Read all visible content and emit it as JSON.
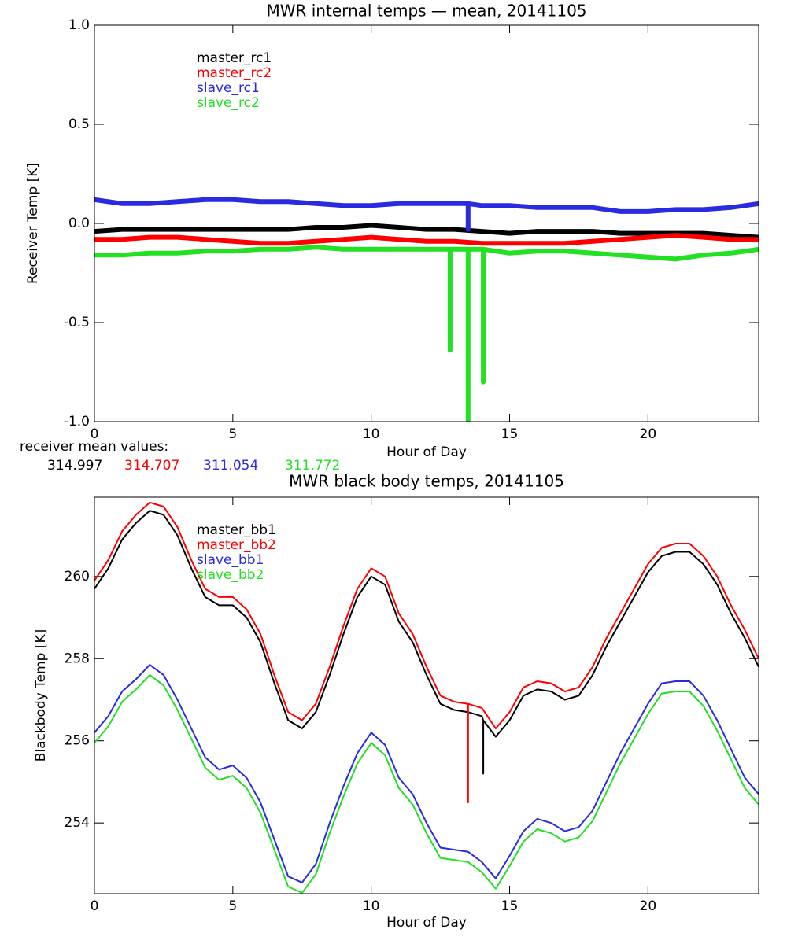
{
  "chart_data": [
    {
      "type": "line",
      "title": "MWR internal temps — mean, 20141105",
      "xlabel": "Hour of Day",
      "ylabel": "Receiver Temp [K]",
      "xlim": [
        0,
        24
      ],
      "ylim": [
        -1.0,
        1.0
      ],
      "xticks": [
        0,
        5,
        10,
        15,
        20
      ],
      "yticks": [
        {
          "value": -1,
          "label": "-1.0"
        },
        {
          "value": -0.5,
          "label": "-0.5"
        },
        {
          "value": 0,
          "label": "0.0"
        },
        {
          "value": 0.5,
          "label": "0.5"
        },
        {
          "value": 1,
          "label": "1.0"
        }
      ],
      "legend": "upper left",
      "series": [
        {
          "name": "master_rc1",
          "color": "#000000",
          "x": [
            0,
            1,
            2,
            3,
            4,
            5,
            6,
            7,
            8,
            9,
            10,
            11,
            12,
            13,
            14,
            15,
            16,
            17,
            18,
            19,
            20,
            21,
            22,
            23,
            24
          ],
          "values": [
            -0.04,
            -0.03,
            -0.03,
            -0.03,
            -0.03,
            -0.03,
            -0.03,
            -0.03,
            -0.02,
            -0.02,
            -0.01,
            -0.02,
            -0.03,
            -0.03,
            -0.04,
            -0.05,
            -0.04,
            -0.04,
            -0.04,
            -0.05,
            -0.05,
            -0.05,
            -0.05,
            -0.06,
            -0.07
          ]
        },
        {
          "name": "master_rc2",
          "color": "#ff0000",
          "x": [
            0,
            1,
            2,
            3,
            4,
            5,
            6,
            7,
            8,
            9,
            10,
            11,
            12,
            13,
            14,
            15,
            16,
            17,
            18,
            19,
            20,
            21,
            22,
            23,
            24
          ],
          "values": [
            -0.08,
            -0.08,
            -0.07,
            -0.07,
            -0.08,
            -0.09,
            -0.1,
            -0.1,
            -0.09,
            -0.08,
            -0.07,
            -0.08,
            -0.09,
            -0.09,
            -0.1,
            -0.1,
            -0.1,
            -0.1,
            -0.09,
            -0.08,
            -0.07,
            -0.06,
            -0.07,
            -0.08,
            -0.08
          ]
        },
        {
          "name": "slave_rc1",
          "color": "#2a2ae0",
          "x": [
            0,
            1,
            2,
            3,
            4,
            5,
            6,
            7,
            8,
            9,
            10,
            11,
            12,
            13,
            13.5,
            13.5,
            13.5,
            14,
            15,
            16,
            17,
            18,
            19,
            20,
            21,
            22,
            23,
            24
          ],
          "values": [
            0.12,
            0.1,
            0.1,
            0.11,
            0.12,
            0.12,
            0.11,
            0.11,
            0.1,
            0.09,
            0.09,
            0.1,
            0.1,
            0.1,
            0.1,
            -0.03,
            0.1,
            0.09,
            0.09,
            0.08,
            0.08,
            0.08,
            0.06,
            0.06,
            0.07,
            0.07,
            0.08,
            0.1
          ]
        },
        {
          "name": "slave_rc2",
          "color": "#22e022",
          "x": [
            0,
            1,
            2,
            3,
            4,
            5,
            6,
            7,
            8,
            9,
            10,
            11,
            12,
            12.85,
            12.85,
            12.85,
            13,
            13.5,
            13.5,
            13.5,
            14,
            14.05,
            14.05,
            14.05,
            15,
            16,
            17,
            18,
            19,
            20,
            21,
            22,
            23,
            24
          ],
          "values": [
            -0.16,
            -0.16,
            -0.15,
            -0.15,
            -0.14,
            -0.14,
            -0.13,
            -0.13,
            -0.12,
            -0.13,
            -0.13,
            -0.13,
            -0.13,
            -0.13,
            -0.64,
            -0.13,
            -0.13,
            -0.13,
            -1.0,
            -0.13,
            -0.13,
            -0.13,
            -0.8,
            -0.13,
            -0.15,
            -0.14,
            -0.14,
            -0.15,
            -0.16,
            -0.17,
            -0.18,
            -0.16,
            -0.15,
            -0.13
          ]
        }
      ],
      "annotation": "receiver mean values:",
      "mean_values": [
        314.997,
        314.707,
        311.054,
        311.772
      ]
    },
    {
      "type": "line",
      "title": "MWR black body temps, 20141105",
      "xlabel": "Hour of Day",
      "ylabel": "Blackbody Temp [K]",
      "xlim": [
        0,
        24
      ],
      "ylim": [
        252.28,
        261.93
      ],
      "xticks": [
        0,
        5,
        10,
        15,
        20
      ],
      "yticks": [
        254,
        256,
        258,
        260
      ],
      "legend": "upper left",
      "series": [
        {
          "name": "master_bb1",
          "color": "#000000",
          "x": [
            0,
            0.5,
            1,
            1.5,
            2,
            2.5,
            3,
            3.5,
            4,
            4.5,
            5,
            5.5,
            6,
            6.5,
            7,
            7.5,
            8,
            8.5,
            9,
            9.5,
            10,
            10.5,
            11,
            11.5,
            12,
            12.5,
            13,
            13.5,
            14,
            14.05,
            14.05,
            14.05,
            14.5,
            15,
            15.5,
            16,
            16.5,
            17,
            17.5,
            18,
            18.5,
            19,
            19.5,
            20,
            20.5,
            21,
            21.5,
            22,
            22.5,
            23,
            23.5,
            24
          ],
          "values": [
            259.7,
            260.2,
            260.9,
            261.3,
            261.6,
            261.5,
            261.0,
            260.2,
            259.5,
            259.3,
            259.3,
            259.0,
            258.4,
            257.4,
            256.5,
            256.3,
            256.7,
            257.6,
            258.6,
            259.5,
            260.0,
            259.8,
            258.9,
            258.4,
            257.6,
            256.9,
            256.75,
            256.7,
            256.6,
            256.5,
            255.2,
            256.5,
            256.1,
            256.5,
            257.1,
            257.25,
            257.2,
            257.0,
            257.1,
            257.6,
            258.3,
            258.9,
            259.5,
            260.1,
            260.5,
            260.6,
            260.6,
            260.3,
            259.8,
            259.1,
            258.5,
            257.8
          ]
        },
        {
          "name": "master_bb2",
          "color": "#ff0000",
          "x": [
            0,
            0.5,
            1,
            1.5,
            2,
            2.5,
            3,
            3.5,
            4,
            4.5,
            5,
            5.5,
            6,
            6.5,
            7,
            7.5,
            8,
            8.5,
            9,
            9.5,
            10,
            10.5,
            11,
            11.5,
            12,
            12.5,
            13,
            13.5,
            13.5,
            13.5,
            14,
            14.5,
            15,
            15.5,
            16,
            16.5,
            17,
            17.5,
            18,
            18.5,
            19,
            19.5,
            20,
            20.5,
            21,
            21.5,
            22,
            22.5,
            23,
            23.5,
            24
          ],
          "values": [
            259.9,
            260.4,
            261.1,
            261.5,
            261.8,
            261.7,
            261.2,
            260.4,
            259.7,
            259.5,
            259.5,
            259.2,
            258.6,
            257.6,
            256.7,
            256.5,
            256.9,
            257.8,
            258.8,
            259.7,
            260.2,
            260.0,
            259.1,
            258.6,
            257.8,
            257.1,
            256.95,
            256.9,
            254.5,
            256.9,
            256.8,
            256.3,
            256.7,
            257.3,
            257.45,
            257.4,
            257.2,
            257.3,
            257.8,
            258.5,
            259.1,
            259.7,
            260.3,
            260.7,
            260.8,
            260.8,
            260.5,
            260.0,
            259.3,
            258.7,
            258.0
          ]
        },
        {
          "name": "slave_bb1",
          "color": "#2a2ae0",
          "x": [
            0,
            0.5,
            1,
            1.5,
            2,
            2.5,
            3,
            3.5,
            4,
            4.5,
            5,
            5.5,
            6,
            6.5,
            7,
            7.5,
            8,
            8.5,
            9,
            9.5,
            10,
            10.5,
            11,
            11.5,
            12,
            12.5,
            13,
            13.5,
            14,
            14.5,
            15,
            15.5,
            16,
            16.5,
            17,
            17.5,
            18,
            18.5,
            19,
            19.5,
            20,
            20.5,
            21,
            21.5,
            22,
            22.5,
            23,
            23.5,
            24
          ],
          "values": [
            256.2,
            256.6,
            257.2,
            257.5,
            257.85,
            257.6,
            257.0,
            256.3,
            255.6,
            255.3,
            255.4,
            255.1,
            254.5,
            253.6,
            252.7,
            252.55,
            253.0,
            254.0,
            254.9,
            255.7,
            256.2,
            255.9,
            255.1,
            254.7,
            254.0,
            253.4,
            253.35,
            253.3,
            253.05,
            252.65,
            253.2,
            253.8,
            254.1,
            254.0,
            253.8,
            253.9,
            254.3,
            255.0,
            255.7,
            256.3,
            256.9,
            257.4,
            257.45,
            257.45,
            257.1,
            256.5,
            255.8,
            255.1,
            254.7
          ]
        },
        {
          "name": "slave_bb2",
          "color": "#22e022",
          "x": [
            0,
            0.5,
            1,
            1.5,
            2,
            2.5,
            3,
            3.5,
            4,
            4.5,
            5,
            5.5,
            6,
            6.5,
            7,
            7.5,
            8,
            8.5,
            9,
            9.5,
            10,
            10.5,
            11,
            11.5,
            12,
            12.5,
            13,
            13.5,
            14,
            14.5,
            15,
            15.5,
            16,
            16.5,
            17,
            17.5,
            18,
            18.5,
            19,
            19.5,
            20,
            20.5,
            21,
            21.5,
            22,
            22.5,
            23,
            23.5,
            24
          ],
          "values": [
            255.95,
            256.35,
            256.95,
            257.25,
            257.6,
            257.35,
            256.75,
            256.05,
            255.35,
            255.05,
            255.15,
            254.85,
            254.25,
            253.35,
            252.45,
            252.3,
            252.75,
            253.75,
            254.65,
            255.45,
            255.95,
            255.65,
            254.85,
            254.45,
            253.75,
            253.15,
            253.1,
            253.05,
            252.8,
            252.4,
            252.95,
            253.55,
            253.85,
            253.75,
            253.55,
            253.65,
            254.05,
            254.75,
            255.45,
            256.05,
            256.65,
            257.15,
            257.2,
            257.2,
            256.85,
            256.25,
            255.55,
            254.85,
            254.45
          ]
        }
      ]
    }
  ]
}
